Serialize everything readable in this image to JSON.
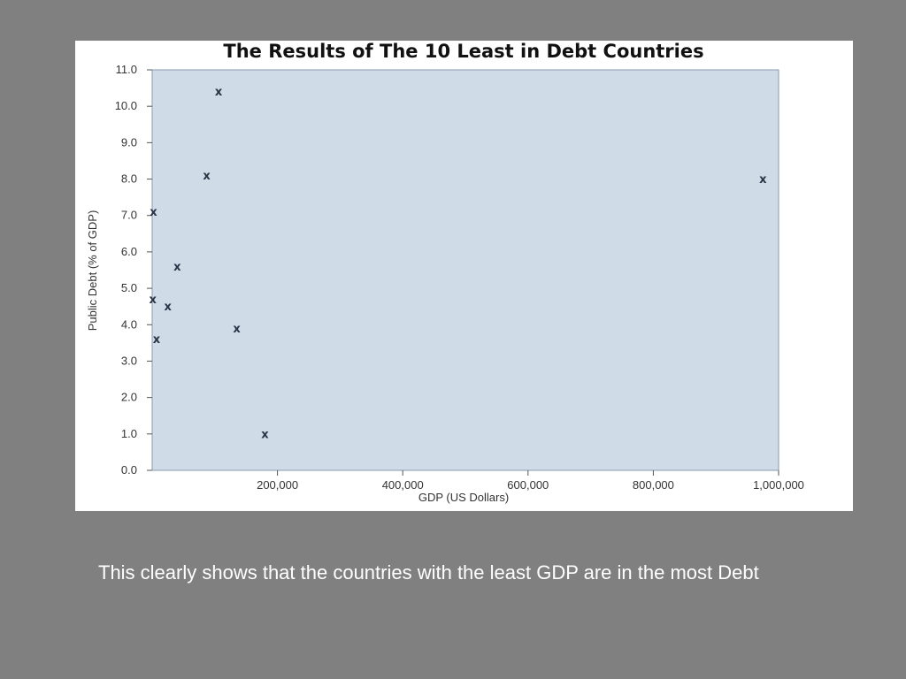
{
  "slide": {
    "caption": "This clearly shows that the countries with the least GDP are in the most Debt"
  },
  "colors": {
    "background": "#808080",
    "plot_area": "#cfdce8",
    "marker": "#2b3447",
    "marker_accent": "#1f7a6e"
  },
  "chart_data": {
    "type": "scatter",
    "title": "The Results of The 10 Least in Debt Countries",
    "xlabel": "GDP (US Dollars)",
    "ylabel": "Public Debt (% of GDP)",
    "marker": "x",
    "xlim": [
      0,
      1000000
    ],
    "ylim": [
      0,
      11
    ],
    "x_ticks": [
      200000,
      400000,
      600000,
      800000,
      1000000
    ],
    "x_tick_labels": [
      "200,000",
      "400,000",
      "600,000",
      "800,000",
      "1,000,000"
    ],
    "y_ticks": [
      0,
      1,
      2,
      3,
      4,
      5,
      6,
      7,
      8,
      9,
      10,
      11
    ],
    "y_tick_labels": [
      "0.0",
      "1.0",
      "2.0",
      "3.0",
      "4.0",
      "5.0",
      "6.0",
      "7.0",
      "8.0",
      "9.0",
      "10.0",
      "11.0"
    ],
    "grid": false,
    "points": [
      {
        "x": 106000,
        "y": 10.4
      },
      {
        "x": 87000,
        "y": 8.1
      },
      {
        "x": 975000,
        "y": 8.0
      },
      {
        "x": 2000,
        "y": 7.1
      },
      {
        "x": 40000,
        "y": 5.6
      },
      {
        "x": 1000,
        "y": 4.7
      },
      {
        "x": 25000,
        "y": 4.5
      },
      {
        "x": 135000,
        "y": 3.9
      },
      {
        "x": 7000,
        "y": 3.6
      },
      {
        "x": 180000,
        "y": 1.0
      }
    ]
  }
}
